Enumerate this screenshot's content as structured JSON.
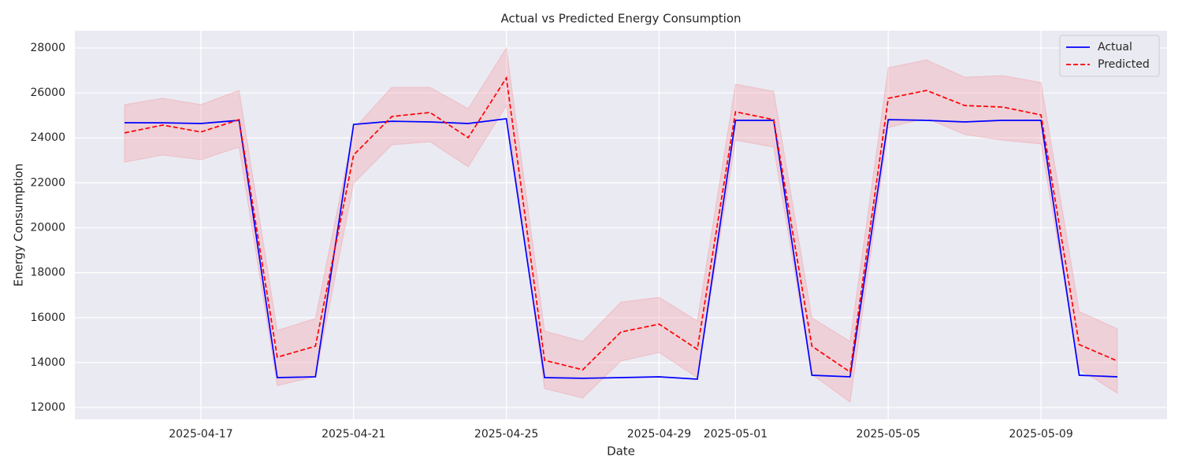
{
  "chart_data": {
    "type": "line",
    "title": "Actual vs Predicted Energy Consumption",
    "x_label": "Date",
    "y_label": "Energy Consumption",
    "x": [
      "2025-04-15",
      "2025-04-16",
      "2025-04-17",
      "2025-04-18",
      "2025-04-19",
      "2025-04-20",
      "2025-04-21",
      "2025-04-22",
      "2025-04-23",
      "2025-04-24",
      "2025-04-25",
      "2025-04-26",
      "2025-04-27",
      "2025-04-28",
      "2025-04-29",
      "2025-04-30",
      "2025-05-01",
      "2025-05-02",
      "2025-05-03",
      "2025-05-04",
      "2025-05-05",
      "2025-05-06",
      "2025-05-07",
      "2025-05-08",
      "2025-05-09",
      "2025-05-10",
      "2025-05-11"
    ],
    "series": [
      {
        "name": "Actual",
        "color": "#0000ff",
        "dash": "solid",
        "values": [
          24674,
          24670,
          24640,
          24780,
          13330,
          13365,
          24600,
          24740,
          24710,
          24640,
          24850,
          13330,
          13300,
          13330,
          13365,
          13260,
          24780,
          24780,
          13435,
          13365,
          24810,
          24780,
          24710,
          24780,
          24780,
          13435,
          13365
        ]
      },
      {
        "name": "Predicted",
        "color": "#ff0000",
        "dash": "dashed",
        "values": [
          24220,
          24570,
          24260,
          24810,
          14240,
          14730,
          23240,
          24950,
          25130,
          24010,
          26670,
          14100,
          13680,
          15360,
          15710,
          14590,
          25160,
          24810,
          14730,
          13580,
          25760,
          26110,
          25440,
          25370,
          25020,
          14800,
          14070
        ],
        "upper": [
          25480,
          25760,
          25480,
          26110,
          15430,
          15960,
          24390,
          26250,
          26250,
          25300,
          28000,
          15400,
          14940,
          16690,
          16900,
          15850,
          26390,
          26070,
          15990,
          14940,
          27120,
          27470,
          26700,
          26770,
          26460,
          16270,
          15500
        ],
        "lower": [
          22920,
          23240,
          23030,
          23590,
          12980,
          13365,
          21980,
          23690,
          23830,
          22710,
          25440,
          12840,
          12420,
          14070,
          14450,
          13330,
          23900,
          23590,
          13470,
          12245,
          24460,
          24880,
          24150,
          23900,
          23730,
          13720,
          12630
        ],
        "band_color": "#f4a0aa"
      }
    ],
    "xlim": [
      "2025-04-13T16:48",
      "2025-05-12T07:12"
    ],
    "xticks": [
      "2025-04-17",
      "2025-04-21",
      "2025-04-25",
      "2025-04-29",
      "2025-05-01",
      "2025-05-05",
      "2025-05-09"
    ],
    "ylim": [
      11475,
      28770
    ],
    "yticks": [
      12000,
      14000,
      16000,
      18000,
      20000,
      22000,
      24000,
      26000,
      28000
    ],
    "grid": true,
    "legend": "upper right"
  }
}
